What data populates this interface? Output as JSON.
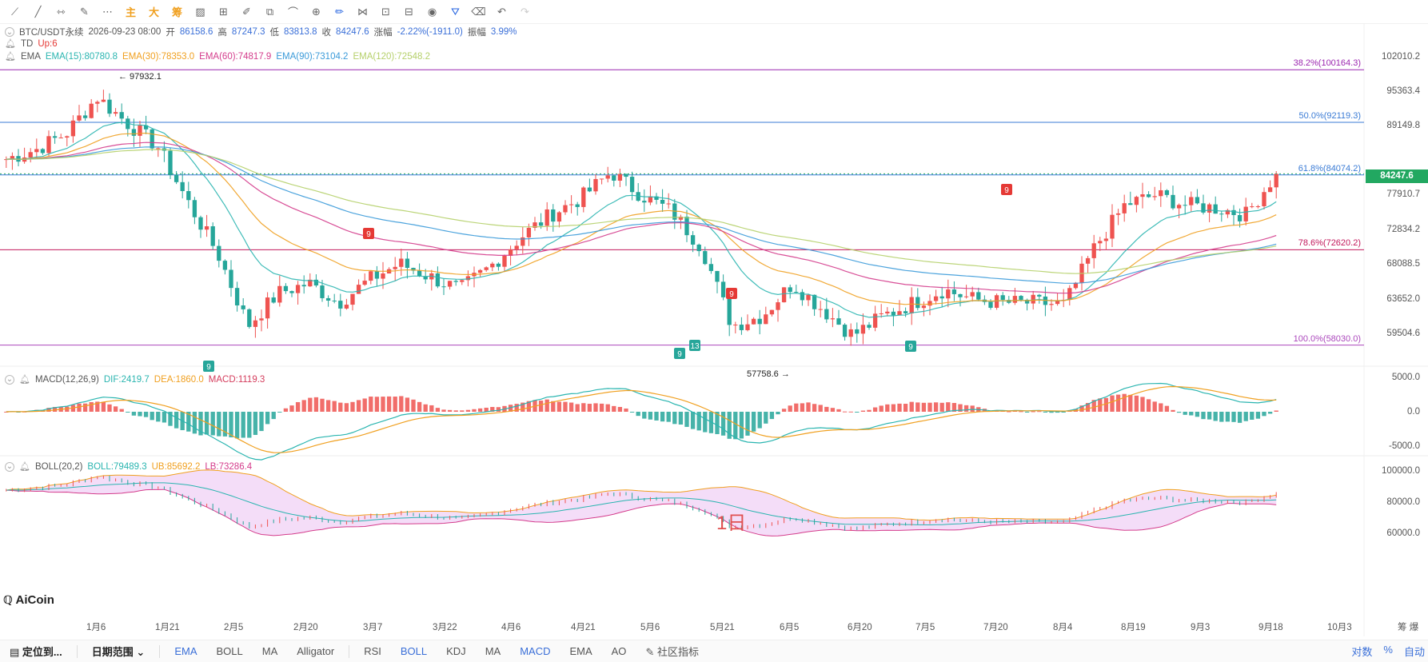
{
  "toolbar": {
    "buttons": [
      {
        "name": "line-tool-icon",
        "glyph": "⟋"
      },
      {
        "name": "trend-line-icon",
        "glyph": "╱"
      },
      {
        "name": "horizontal-line-icon",
        "glyph": "⇿"
      },
      {
        "name": "brush-icon",
        "glyph": "✎"
      },
      {
        "name": "dotted-line-icon",
        "glyph": "⋯"
      }
    ],
    "cjk_buttons": [
      "主",
      "大",
      "筹"
    ],
    "tools2": [
      {
        "name": "pattern-icon",
        "glyph": "▨"
      },
      {
        "name": "measure-icon",
        "glyph": "⊞"
      },
      {
        "name": "pen-icon",
        "glyph": "✐"
      },
      {
        "name": "copy-icon",
        "glyph": "⧉"
      },
      {
        "name": "ruler-icon",
        "glyph": "⌒"
      },
      {
        "name": "zoom-icon",
        "glyph": "⊕"
      },
      {
        "name": "draw-active-icon",
        "glyph": "✏"
      },
      {
        "name": "magnet-icon",
        "glyph": "⋈"
      },
      {
        "name": "lock-icon",
        "glyph": "⊡"
      },
      {
        "name": "edit-icon",
        "glyph": "⊟"
      },
      {
        "name": "eye-icon",
        "glyph": "◉"
      },
      {
        "name": "filter-icon",
        "glyph": "⛛"
      },
      {
        "name": "trash-icon",
        "glyph": "⌫"
      },
      {
        "name": "undo-icon",
        "glyph": "↶"
      },
      {
        "name": "redo-icon",
        "glyph": "↷"
      }
    ]
  },
  "header": {
    "symbol": "BTC/USDT永续",
    "datetime": "2026-09-23 08:00",
    "open_label": "开",
    "open": "86158.6",
    "high_label": "高",
    "high": "87247.3",
    "low_label": "低",
    "low": "83813.8",
    "close_label": "收",
    "close": "84247.6",
    "change_label": "涨幅",
    "change": "-2.22%(-1911.0)",
    "amplitude_label": "振幅",
    "amplitude": "3.99%"
  },
  "td": {
    "name": "TD",
    "value": "Up:6"
  },
  "ema": {
    "name": "EMA",
    "items": [
      {
        "text": "EMA(15):80780.8",
        "color": "#2ab5b0"
      },
      {
        "text": "EMA(30):78353.0",
        "color": "#f0a020"
      },
      {
        "text": "EMA(60):74817.9",
        "color": "#d43c8c"
      },
      {
        "text": "EMA(90):73104.2",
        "color": "#3a9ad9"
      },
      {
        "text": "EMA(120):72548.2",
        "color": "#b5d06a"
      }
    ]
  },
  "macd": {
    "name": "MACD(12,26,9)",
    "dif": "DIF:2419.7",
    "dea": "DEA:1860.0",
    "macd": "MACD:1119.3"
  },
  "boll": {
    "name": "BOLL(20,2)",
    "boll": "BOLL:79489.3",
    "ub": "UB:85692.2",
    "lb": "LB:73286.4"
  },
  "price_axis": [
    "102010.2",
    "95363.4",
    "89149.8",
    "77910.7",
    "72834.2",
    "68088.5",
    "63652.0",
    "59504.6"
  ],
  "current_price": "84247.6",
  "macd_axis": [
    "5000.0",
    "0.0",
    "-5000.0"
  ],
  "boll_axis": [
    "100000.0",
    "80000.0",
    "60000.0"
  ],
  "fib_levels": [
    {
      "label": "38.2%(100164.3)",
      "price": 100164.3,
      "color": "#9c27b0"
    },
    {
      "label": "50.0%(92119.3)",
      "price": 92119.3,
      "color": "#3a7bd5"
    },
    {
      "label": "61.8%(84074.2)",
      "price": 84074.2,
      "color": "#3a7bd5"
    },
    {
      "label": "78.6%(72620.2)",
      "price": 72620.2,
      "color": "#c2185b"
    },
    {
      "label": "100.0%(58030.0)",
      "price": 58030.0,
      "color": "#ab47bc"
    }
  ],
  "annotations": {
    "high": "97932.1",
    "low": "57758.6"
  },
  "td_marks": [
    "9",
    "9",
    "9",
    "9",
    "13",
    "9",
    "9"
  ],
  "period": "1日",
  "dates": [
    "1月6",
    "1月21",
    "2月5",
    "2月20",
    "3月7",
    "3月22",
    "4月6",
    "4月21",
    "5月6",
    "5月21",
    "6月5",
    "6月20",
    "7月5",
    "7月20",
    "8月4",
    "8月19",
    "9月3",
    "9月18",
    "10月3"
  ],
  "date_axis_right": "筹 爆",
  "logo": "AiCoin",
  "bottom": {
    "locate": "定位到...",
    "date_range": "日期范围",
    "main_indicators": [
      "EMA",
      "BOLL",
      "MA",
      "Alligator"
    ],
    "sub_indicators": [
      "RSI",
      "BOLL",
      "KDJ",
      "MA",
      "MACD",
      "EMA",
      "AO"
    ],
    "custom": "社区指标",
    "right": [
      "对数",
      "%",
      "自动"
    ]
  },
  "colors": {
    "up": "#ef5350",
    "down": "#26a69a",
    "accent": "#3a6fd8"
  },
  "chart_data": {
    "type": "candlestick",
    "title": "BTC/USDT永续 1日",
    "ylim": [
      57000,
      103500
    ],
    "close_approx": [
      86500,
      88000,
      90500,
      96000,
      92000,
      88500,
      80000,
      72000,
      61000,
      66000,
      67500,
      64500,
      68000,
      70500,
      68500,
      66500,
      70000,
      74500,
      78000,
      80500,
      84500,
      81000,
      78500,
      73000,
      61000,
      62500,
      67500,
      63500,
      59500,
      62500,
      64500,
      66500,
      65000,
      64500,
      64500,
      64200,
      73000,
      79500,
      81000,
      79500,
      79000,
      78000,
      84247.6
    ]
  }
}
